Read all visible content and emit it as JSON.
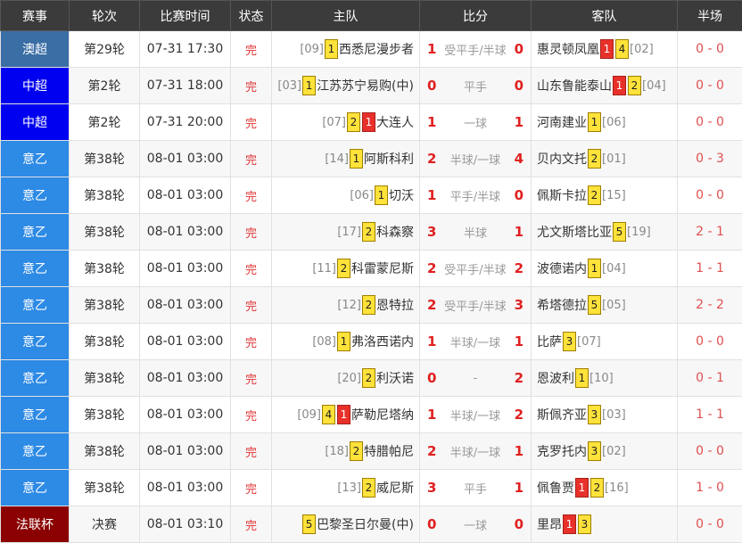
{
  "header": {
    "league": "赛事",
    "round": "轮次",
    "time": "比赛时间",
    "status": "状态",
    "home": "主队",
    "score": "比分",
    "away": "客队",
    "half": "半场"
  },
  "colors": {
    "澳超": "#3a6ea5",
    "中超": "#0000f0",
    "意乙": "#2d8ae5",
    "法联杯": "#8b0000"
  },
  "rows": [
    {
      "league": "澳超",
      "league_color": "#3a6ea5",
      "round": "第29轮",
      "time": "07-31 17:30",
      "status": "完",
      "home_rank": "[09]",
      "home_cards": [
        {
          "n": "1",
          "c": "y"
        }
      ],
      "home": "西悉尼漫步者",
      "home_score": "1",
      "handicap": "受平手/半球",
      "away_score": "0",
      "away": "惠灵顿凤凰",
      "away_cards": [
        {
          "n": "1",
          "c": "r"
        },
        {
          "n": "4",
          "c": "y"
        }
      ],
      "away_rank": "[02]",
      "half": "0 - 0"
    },
    {
      "league": "中超",
      "league_color": "#0000f0",
      "round": "第2轮",
      "time": "07-31 18:00",
      "status": "完",
      "home_rank": "[03]",
      "home_cards": [
        {
          "n": "1",
          "c": "y"
        }
      ],
      "home": "江苏苏宁易购(中)",
      "home_score": "0",
      "handicap": "平手",
      "away_score": "0",
      "away": "山东鲁能泰山",
      "away_cards": [
        {
          "n": "1",
          "c": "r"
        },
        {
          "n": "2",
          "c": "y"
        }
      ],
      "away_rank": "[04]",
      "half": "0 - 0"
    },
    {
      "league": "中超",
      "league_color": "#0000f0",
      "round": "第2轮",
      "time": "07-31 20:00",
      "status": "完",
      "home_rank": "[07]",
      "home_cards": [
        {
          "n": "2",
          "c": "y"
        },
        {
          "n": "1",
          "c": "r"
        }
      ],
      "home": "大连人",
      "home_score": "1",
      "handicap": "一球",
      "away_score": "1",
      "away": "河南建业",
      "away_cards": [
        {
          "n": "1",
          "c": "y"
        }
      ],
      "away_rank": "[06]",
      "half": "0 - 0"
    },
    {
      "league": "意乙",
      "league_color": "#2d8ae5",
      "round": "第38轮",
      "time": "08-01 03:00",
      "status": "完",
      "home_rank": "[14]",
      "home_cards": [
        {
          "n": "1",
          "c": "y"
        }
      ],
      "home": "阿斯科利",
      "home_score": "2",
      "handicap": "半球/一球",
      "away_score": "4",
      "away": "贝内文托",
      "away_cards": [
        {
          "n": "2",
          "c": "y"
        }
      ],
      "away_rank": "[01]",
      "half": "0 - 3"
    },
    {
      "league": "意乙",
      "league_color": "#2d8ae5",
      "round": "第38轮",
      "time": "08-01 03:00",
      "status": "完",
      "home_rank": "[06]",
      "home_cards": [
        {
          "n": "1",
          "c": "y"
        }
      ],
      "home": "切沃",
      "home_score": "1",
      "handicap": "平手/半球",
      "away_score": "0",
      "away": "佩斯卡拉",
      "away_cards": [
        {
          "n": "2",
          "c": "y"
        }
      ],
      "away_rank": "[15]",
      "half": "0 - 0"
    },
    {
      "league": "意乙",
      "league_color": "#2d8ae5",
      "round": "第38轮",
      "time": "08-01 03:00",
      "status": "完",
      "home_rank": "[17]",
      "home_cards": [
        {
          "n": "2",
          "c": "y"
        }
      ],
      "home": "科森察",
      "home_score": "3",
      "handicap": "半球",
      "away_score": "1",
      "away": "尤文斯塔比亚",
      "away_cards": [
        {
          "n": "5",
          "c": "y"
        }
      ],
      "away_rank": "[19]",
      "half": "2 - 1"
    },
    {
      "league": "意乙",
      "league_color": "#2d8ae5",
      "round": "第38轮",
      "time": "08-01 03:00",
      "status": "完",
      "home_rank": "[11]",
      "home_cards": [
        {
          "n": "2",
          "c": "y"
        }
      ],
      "home": "科雷蒙尼斯",
      "home_score": "2",
      "handicap": "受平手/半球",
      "away_score": "2",
      "away": "波德诺内",
      "away_cards": [
        {
          "n": "1",
          "c": "y"
        }
      ],
      "away_rank": "[04]",
      "half": "1 - 1"
    },
    {
      "league": "意乙",
      "league_color": "#2d8ae5",
      "round": "第38轮",
      "time": "08-01 03:00",
      "status": "完",
      "home_rank": "[12]",
      "home_cards": [
        {
          "n": "2",
          "c": "y"
        }
      ],
      "home": "恩特拉",
      "home_score": "2",
      "handicap": "受平手/半球",
      "away_score": "3",
      "away": "希塔德拉",
      "away_cards": [
        {
          "n": "5",
          "c": "y"
        }
      ],
      "away_rank": "[05]",
      "half": "2 - 2"
    },
    {
      "league": "意乙",
      "league_color": "#2d8ae5",
      "round": "第38轮",
      "time": "08-01 03:00",
      "status": "完",
      "home_rank": "[08]",
      "home_cards": [
        {
          "n": "1",
          "c": "y"
        }
      ],
      "home": "弗洛西诺内",
      "home_score": "1",
      "handicap": "半球/一球",
      "away_score": "1",
      "away": "比萨",
      "away_cards": [
        {
          "n": "3",
          "c": "y"
        }
      ],
      "away_rank": "[07]",
      "half": "0 - 0"
    },
    {
      "league": "意乙",
      "league_color": "#2d8ae5",
      "round": "第38轮",
      "time": "08-01 03:00",
      "status": "完",
      "home_rank": "[20]",
      "home_cards": [
        {
          "n": "2",
          "c": "y"
        }
      ],
      "home": "利沃诺",
      "home_score": "0",
      "handicap": "-",
      "away_score": "2",
      "away": "恩波利",
      "away_cards": [
        {
          "n": "1",
          "c": "y"
        }
      ],
      "away_rank": "[10]",
      "half": "0 - 1"
    },
    {
      "league": "意乙",
      "league_color": "#2d8ae5",
      "round": "第38轮",
      "time": "08-01 03:00",
      "status": "完",
      "home_rank": "[09]",
      "home_cards": [
        {
          "n": "4",
          "c": "y"
        },
        {
          "n": "1",
          "c": "r"
        }
      ],
      "home": "萨勒尼塔纳",
      "home_score": "1",
      "handicap": "半球/一球",
      "away_score": "2",
      "away": "斯佩齐亚",
      "away_cards": [
        {
          "n": "3",
          "c": "y"
        }
      ],
      "away_rank": "[03]",
      "half": "1 - 1"
    },
    {
      "league": "意乙",
      "league_color": "#2d8ae5",
      "round": "第38轮",
      "time": "08-01 03:00",
      "status": "完",
      "home_rank": "[18]",
      "home_cards": [
        {
          "n": "2",
          "c": "y"
        }
      ],
      "home": "特腊帕尼",
      "home_score": "2",
      "handicap": "半球/一球",
      "away_score": "1",
      "away": "克罗托内",
      "away_cards": [
        {
          "n": "3",
          "c": "y"
        }
      ],
      "away_rank": "[02]",
      "half": "0 - 0"
    },
    {
      "league": "意乙",
      "league_color": "#2d8ae5",
      "round": "第38轮",
      "time": "08-01 03:00",
      "status": "完",
      "home_rank": "[13]",
      "home_cards": [
        {
          "n": "2",
          "c": "y"
        }
      ],
      "home": "威尼斯",
      "home_score": "3",
      "handicap": "平手",
      "away_score": "1",
      "away": "佩鲁贾",
      "away_cards": [
        {
          "n": "1",
          "c": "r"
        },
        {
          "n": "2",
          "c": "y"
        }
      ],
      "away_rank": "[16]",
      "half": "1 - 0"
    },
    {
      "league": "法联杯",
      "league_color": "#8b0000",
      "round": "决赛",
      "time": "08-01 03:10",
      "status": "完",
      "home_rank": "",
      "home_cards": [
        {
          "n": "5",
          "c": "y"
        }
      ],
      "home": "巴黎圣日尔曼(中)",
      "home_score": "0",
      "handicap": "一球",
      "away_score": "0",
      "away": "里昂",
      "away_cards": [
        {
          "n": "1",
          "c": "r"
        },
        {
          "n": "3",
          "c": "y"
        }
      ],
      "away_rank": "",
      "half": "0 - 0"
    }
  ]
}
